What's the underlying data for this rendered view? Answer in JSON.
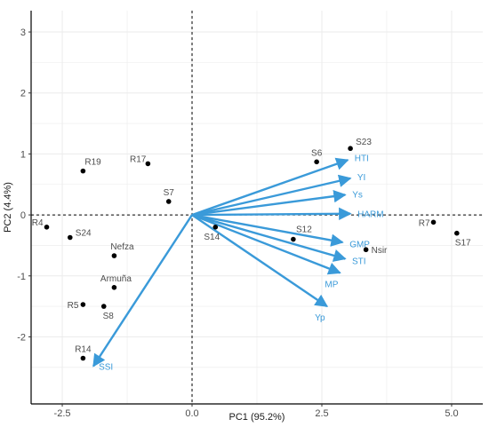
{
  "chart_data": {
    "type": "scatter",
    "subtype": "biplot",
    "title": "",
    "xlabel": "PC1 (95.2%)",
    "ylabel": "PC2 (4.4%)",
    "xlim": [
      -3.1,
      5.6
    ],
    "ylim": [
      -3.1,
      3.35
    ],
    "xticks": [
      -2.5,
      0.0,
      2.5,
      5.0
    ],
    "xtick_labels": [
      "-2.5",
      "0.0",
      "2.5",
      "5.0"
    ],
    "yticks": [
      -2,
      -1,
      0,
      1,
      2,
      3
    ],
    "ytick_labels": [
      "-2",
      "-1",
      "0",
      "1",
      "2",
      "3"
    ],
    "grid": true,
    "reference_lines": {
      "x": 0,
      "y": 0,
      "style": "dashed"
    },
    "colors": {
      "points": "#000000",
      "vectors": "#3a9ad9",
      "vector_labels": "#3a9ad9",
      "grid": "#ebebeb"
    },
    "points": [
      {
        "label": "R19",
        "x": -2.1,
        "y": 0.72
      },
      {
        "label": "R17",
        "x": -0.85,
        "y": 0.84
      },
      {
        "label": "S7",
        "x": -0.45,
        "y": 0.22
      },
      {
        "label": "R4",
        "x": -2.8,
        "y": -0.2
      },
      {
        "label": "S24",
        "x": -2.35,
        "y": -0.37
      },
      {
        "label": "Nefza",
        "x": -1.5,
        "y": -0.67
      },
      {
        "label": "Armuña",
        "x": -1.5,
        "y": -1.19
      },
      {
        "label": "R5",
        "x": -2.1,
        "y": -1.47
      },
      {
        "label": "S8",
        "x": -1.7,
        "y": -1.5
      },
      {
        "label": "R14",
        "x": -2.1,
        "y": -2.35
      },
      {
        "label": "S14",
        "x": 0.45,
        "y": -0.2
      },
      {
        "label": "S12",
        "x": 1.95,
        "y": -0.4
      },
      {
        "label": "S6",
        "x": 2.4,
        "y": 0.87
      },
      {
        "label": "S23",
        "x": 3.05,
        "y": 1.09
      },
      {
        "label": "Nsir",
        "x": 3.35,
        "y": -0.57
      },
      {
        "label": "R7",
        "x": 4.65,
        "y": -0.12
      },
      {
        "label": "S17",
        "x": 5.1,
        "y": -0.3
      }
    ],
    "vectors": [
      {
        "label": "HTI",
        "x": 3.0,
        "y": 0.9
      },
      {
        "label": "YI",
        "x": 3.05,
        "y": 0.6
      },
      {
        "label": "Ys",
        "x": 2.95,
        "y": 0.33
      },
      {
        "label": "HARM",
        "x": 3.05,
        "y": 0.02
      },
      {
        "label": "GMP",
        "x": 2.9,
        "y": -0.45
      },
      {
        "label": "STI",
        "x": 2.95,
        "y": -0.72
      },
      {
        "label": "MP",
        "x": 2.85,
        "y": -0.95
      },
      {
        "label": "Yp",
        "x": 2.6,
        "y": -1.5
      },
      {
        "label": "SSI",
        "x": -1.9,
        "y": -2.48
      }
    ]
  }
}
